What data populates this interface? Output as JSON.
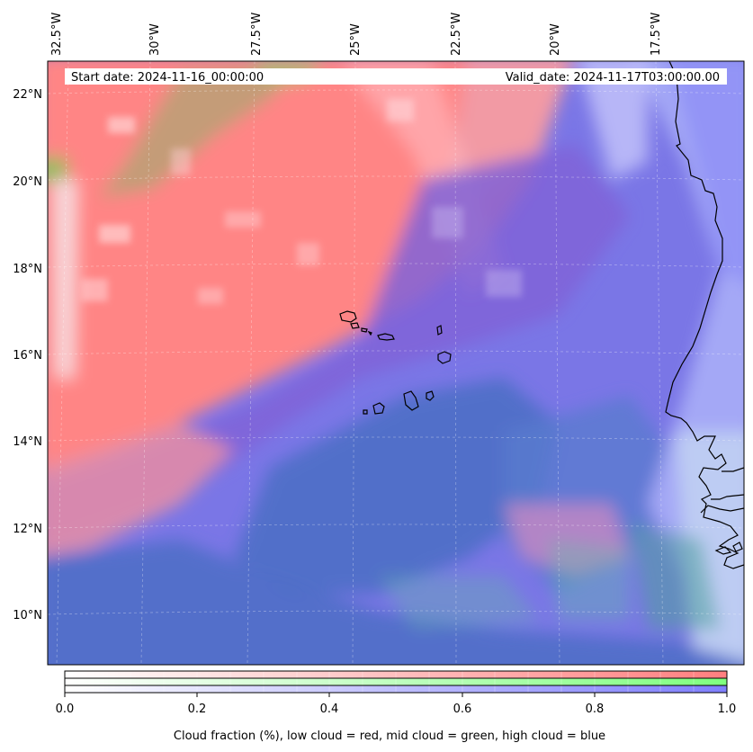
{
  "map": {
    "start_date": "Start date: 2024-11-16_00:00:00",
    "valid_date": "Valid_date: 2024-11-17T03:00:00.00",
    "lon_labels": [
      "32.5°W",
      "30°W",
      "27.5°W",
      "25°W",
      "22.5°W",
      "20°W",
      "17.5°W"
    ],
    "lat_labels": [
      "22°N",
      "20°N",
      "18°N",
      "16°N",
      "14°N",
      "12°N",
      "10°N"
    ],
    "layer_colors": {
      "low": "#ff7f7f",
      "mid": "#7fff7f",
      "high": "#7f7fff"
    }
  },
  "colorbar": {
    "ticks": [
      "0.0",
      "0.2",
      "0.4",
      "0.6",
      "0.8",
      "1.0"
    ],
    "label": "Cloud fraction (%), low cloud = red, mid cloud = green, high cloud = blue"
  }
}
